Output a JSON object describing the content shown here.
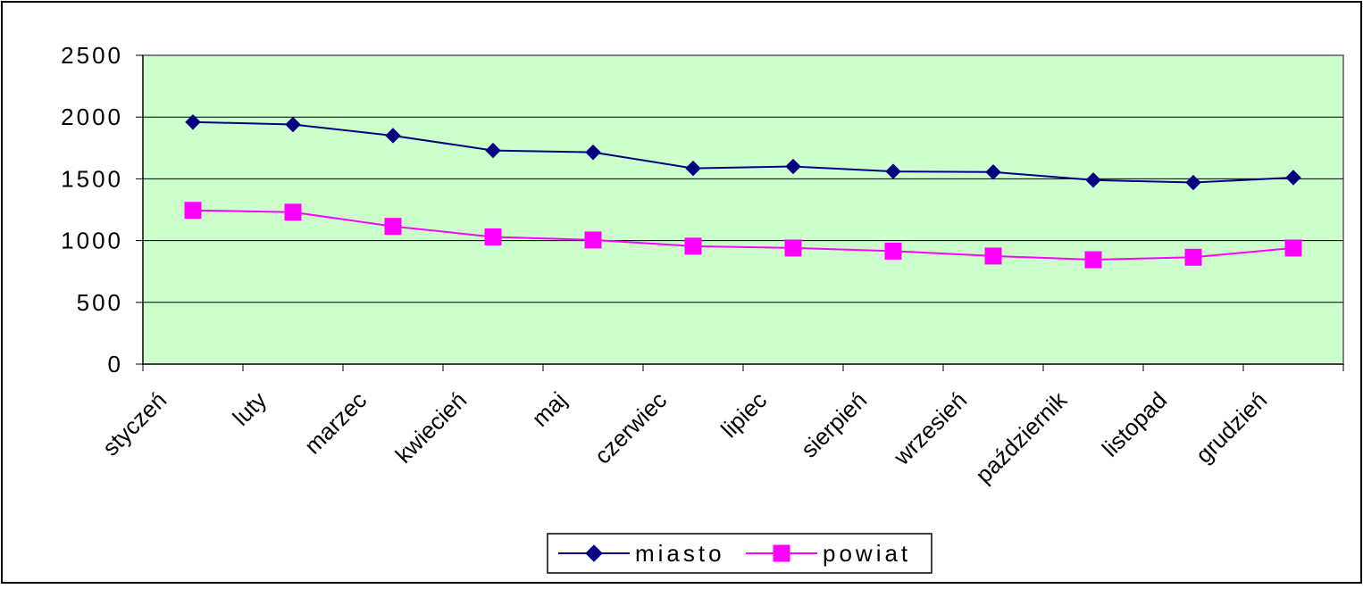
{
  "colors": {
    "plot_background": "#ccffcc",
    "series_miasto": "#000080",
    "series_powiat": "#ff00ff",
    "gridline": "#000000",
    "frame": "#000000"
  },
  "chart_data": {
    "type": "line",
    "title": "",
    "xlabel": "",
    "ylabel": "",
    "categories": [
      "styczeń",
      "luty",
      "marzec",
      "kwiecień",
      "maj",
      "czerwiec",
      "lipiec",
      "sierpień",
      "wrzesień",
      "październik",
      "listopad",
      "grudzień"
    ],
    "ylim": [
      0,
      2500
    ],
    "yticks": [
      0,
      500,
      1000,
      1500,
      2000,
      2500
    ],
    "ytick_labels": [
      "0",
      "500",
      "1000",
      "1500",
      "2000",
      "2500"
    ],
    "grid": true,
    "legend_position": "bottom-center",
    "series": [
      {
        "name": "miasto",
        "marker": "diamond",
        "values": [
          1960,
          1940,
          1850,
          1730,
          1715,
          1585,
          1600,
          1560,
          1555,
          1490,
          1470,
          1510
        ]
      },
      {
        "name": "powiat",
        "marker": "square",
        "values": [
          1245,
          1230,
          1115,
          1030,
          1005,
          955,
          940,
          915,
          875,
          845,
          865,
          940
        ]
      }
    ]
  }
}
